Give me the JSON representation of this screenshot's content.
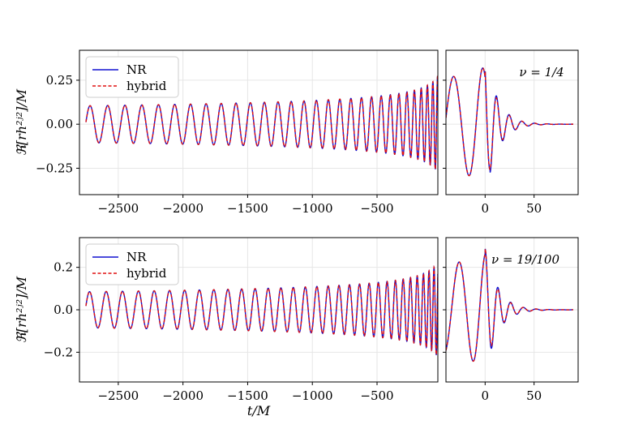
{
  "figure": {
    "xlabel": "t/M"
  },
  "chart_data": [
    {
      "type": "line",
      "panel": "top",
      "ylabel": "ℜ[rh²ʲ²]/M",
      "ylim": [
        -0.4,
        0.42
      ],
      "yticks": [
        0.25,
        0.0,
        -0.25
      ],
      "ytick_labels": [
        "0.25",
        "0.00",
        "−0.25"
      ],
      "left": {
        "xlim": [
          -2800,
          -30
        ],
        "xticks": [
          -2500,
          -2000,
          -1500,
          -1000,
          -500
        ],
        "xtick_labels": [
          "−2500",
          "−2000",
          "−1500",
          "−1000",
          "−500"
        ]
      },
      "right": {
        "xlim": [
          -40,
          95
        ],
        "xticks": [
          0,
          50
        ],
        "xtick_labels": [
          "0",
          "50"
        ]
      },
      "annotation": "ν = 1/4",
      "legend": {
        "placement": "top-left",
        "entries": [
          {
            "label": "NR",
            "color": "#1010d0",
            "style": "solid"
          },
          {
            "label": "hybrid",
            "color": "#e01010",
            "style": "dashed"
          }
        ]
      },
      "signal": {
        "t_range": [
          -2750,
          90
        ],
        "merger_t": 0,
        "inspiral_start_amplitude": 0.105,
        "peak_amplitude": 0.39,
        "ringdown_decay_time": 12,
        "ringdown_period": 13,
        "start_period": 138,
        "merger_period": 14
      },
      "series": [
        {
          "name": "NR",
          "color": "#1010d0",
          "dash": "solid"
        },
        {
          "name": "hybrid",
          "color": "#e01010",
          "dash": "dashed"
        }
      ]
    },
    {
      "type": "line",
      "panel": "bottom",
      "ylabel": "ℜ[rh²ʲ²]/M",
      "ylim": [
        -0.34,
        0.34
      ],
      "yticks": [
        0.2,
        0.0,
        -0.2
      ],
      "ytick_labels": [
        "0.2",
        "0.0",
        "−0.2"
      ],
      "left": {
        "xlim": [
          -2800,
          -30
        ],
        "xticks": [
          -2500,
          -2000,
          -1500,
          -1000,
          -500
        ],
        "xtick_labels": [
          "−2500",
          "−2000",
          "−1500",
          "−1000",
          "−500"
        ]
      },
      "right": {
        "xlim": [
          -40,
          95
        ],
        "xticks": [
          0,
          50
        ],
        "xtick_labels": [
          "0",
          "50"
        ]
      },
      "annotation": "ν = 19/100",
      "legend": {
        "placement": "top-left",
        "entries": [
          {
            "label": "NR",
            "color": "#1010d0",
            "style": "solid"
          },
          {
            "label": "hybrid",
            "color": "#e01010",
            "style": "dashed"
          }
        ]
      },
      "signal": {
        "t_range": [
          -2750,
          90
        ],
        "merger_t": 0,
        "inspiral_start_amplitude": 0.085,
        "peak_amplitude": 0.29,
        "ringdown_decay_time": 12,
        "ringdown_period": 13,
        "start_period": 130,
        "merger_period": 14
      },
      "series": [
        {
          "name": "NR",
          "color": "#1010d0",
          "dash": "solid"
        },
        {
          "name": "hybrid",
          "color": "#e01010",
          "dash": "dashed"
        }
      ]
    }
  ]
}
